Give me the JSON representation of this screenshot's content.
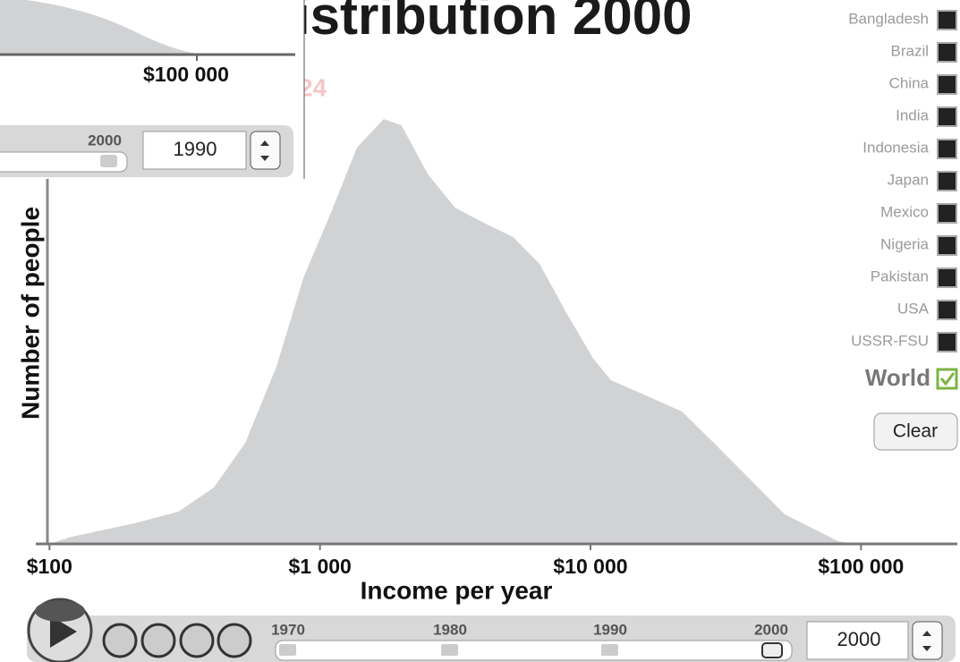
{
  "chart_data": {
    "type": "area",
    "title": "istribution 2000",
    "subtitle": "24",
    "x_label": "Income per year",
    "y_label": "Number of people",
    "x": [
      100,
      120,
      205,
      300,
      405,
      530,
      690,
      870,
      1090,
      1370,
      1720,
      2000,
      2510,
      3160,
      3960,
      5170,
      6490,
      8150,
      10200,
      11900,
      15500,
      21800,
      28500,
      38600,
      52200,
      82400,
      95900
    ],
    "values": [
      0,
      1.6,
      4.7,
      7.4,
      12.9,
      23.2,
      40.6,
      61.1,
      75.4,
      90.8,
      97.3,
      95.9,
      84.6,
      77.0,
      73.8,
      70.3,
      64.1,
      52.9,
      42.6,
      37.5,
      34.4,
      30.3,
      23.2,
      15.0,
      6.8,
      0.6,
      0
    ],
    "color": "#d1d2d4",
    "log_x": true,
    "xlim": [
      89,
      227000
    ],
    "ylim": [
      0,
      100
    ],
    "xticks": [
      {
        "value": 100,
        "label": "$100"
      },
      {
        "value": 1000,
        "label": "$1 000"
      },
      {
        "value": 10000,
        "label": "$10 000"
      },
      {
        "value": 100000,
        "label": "$100 000"
      }
    ]
  },
  "ui": {
    "legend": [
      "Bangladesh",
      "Brazil",
      "China",
      "India",
      "Indonesia",
      "Japan",
      "Mexico",
      "Nigeria",
      "Pakistan",
      "USA",
      "USSR-FSU"
    ],
    "world": "World",
    "clear": "Clear",
    "timeline": {
      "years": [
        "1970",
        "1980",
        "1990",
        "2000"
      ],
      "year_input": "2000"
    },
    "inset": {
      "axis_label": "$100 000",
      "slider_label": "2000",
      "year_input": "1990"
    }
  }
}
